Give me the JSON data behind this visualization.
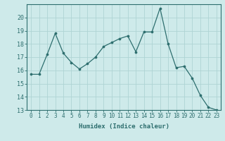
{
  "x": [
    0,
    1,
    2,
    3,
    4,
    5,
    6,
    7,
    8,
    9,
    10,
    11,
    12,
    13,
    14,
    15,
    16,
    17,
    18,
    19,
    20,
    21,
    22,
    23
  ],
  "y": [
    15.7,
    15.7,
    17.2,
    18.8,
    17.3,
    16.6,
    16.1,
    16.5,
    17.0,
    17.8,
    18.1,
    18.4,
    18.6,
    17.4,
    18.9,
    18.9,
    20.7,
    18.0,
    16.2,
    16.3,
    15.4,
    14.1,
    13.2,
    13.0
  ],
  "line_color": "#2d6e6e",
  "marker": "o",
  "marker_size": 2.2,
  "bg_color": "#ceeaea",
  "grid_color_major": "#aed4d4",
  "grid_color_minor": "#c4e4e4",
  "xlabel": "Humidex (Indice chaleur)",
  "ylim": [
    13,
    21
  ],
  "xlim": [
    -0.5,
    23.5
  ],
  "yticks": [
    13,
    14,
    15,
    16,
    17,
    18,
    19,
    20
  ],
  "xticks": [
    0,
    1,
    2,
    3,
    4,
    5,
    6,
    7,
    8,
    9,
    10,
    11,
    12,
    13,
    14,
    15,
    16,
    17,
    18,
    19,
    20,
    21,
    22,
    23
  ],
  "tick_color": "#2d6e6e",
  "label_color": "#2d6e6e",
  "tick_fontsize": 5.5,
  "xlabel_fontsize": 6.5
}
